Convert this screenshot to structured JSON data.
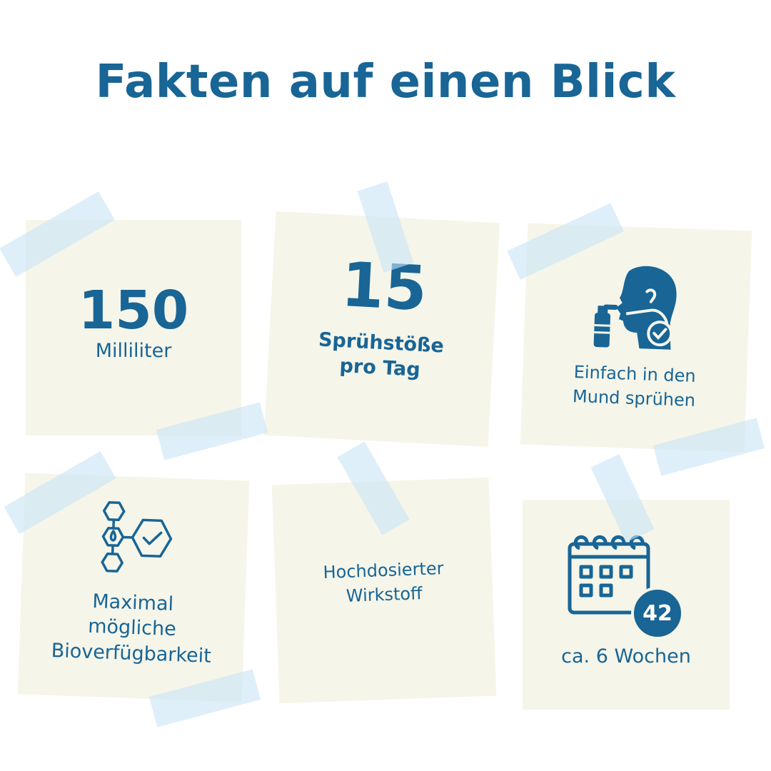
{
  "title": "Fakten auf einen Blick",
  "colors": {
    "primary": "#186596",
    "note": "#f5f5e9",
    "tape": "#c8e4f6"
  },
  "facts": [
    {
      "number": "150",
      "label": "Milliliter"
    },
    {
      "number": "15",
      "label_lines": [
        "Sprühstöße",
        "pro Tag"
      ]
    },
    {
      "icon": "spray-mouth-icon",
      "label_lines": [
        "Einfach in den",
        "Mund sprühen"
      ]
    },
    {
      "icon": "molecule-check-icon",
      "label_lines": [
        "Maximal",
        "mögliche",
        "Bioverfügbarkeit"
      ]
    },
    {
      "label_lines": [
        "Hochdosierter",
        "Wirkstoff"
      ]
    },
    {
      "icon": "calendar-icon",
      "badge": "42",
      "label": "ca. 6 Wochen"
    }
  ]
}
